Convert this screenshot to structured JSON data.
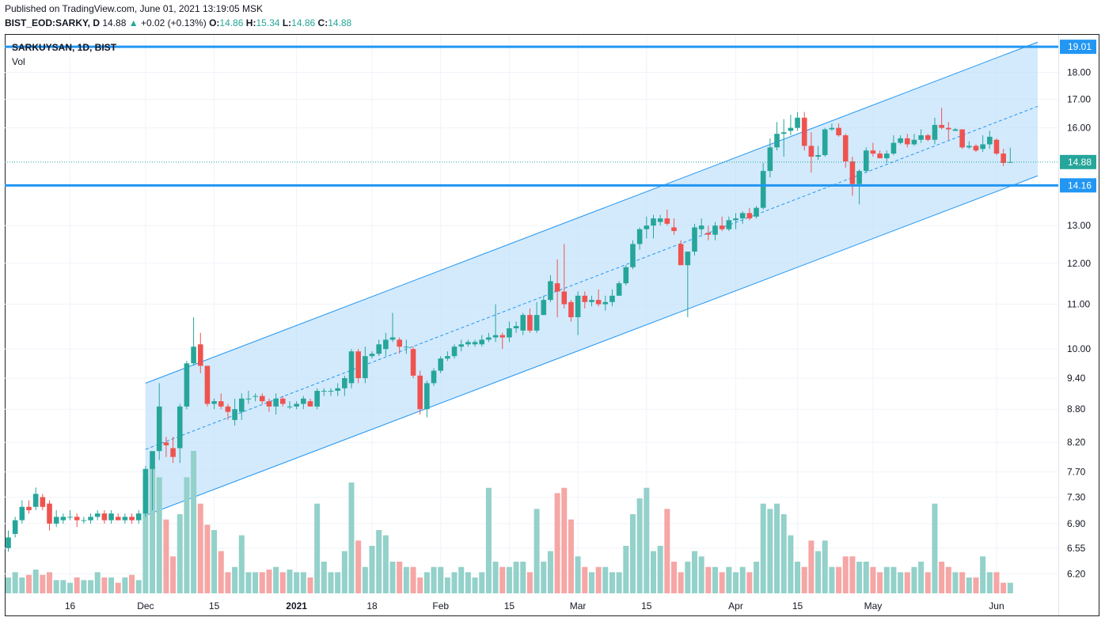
{
  "header": {
    "published": "Published on TradingView.com, June 01, 2021 13:19:05 MSK",
    "symbol": "BIST_EOD:SARKY, D",
    "price": "14.88",
    "change": "+0.02 (+0.13%)",
    "o_label": "O:",
    "o": "14.86",
    "h_label": "H:",
    "h": "15.34",
    "l_label": "L:",
    "l": "14.86",
    "c_label": "C:",
    "c": "14.88"
  },
  "legend": {
    "series": "SARKUYSAN, 1D, BIST",
    "volume": "Vol"
  },
  "colors": {
    "up": "#26a69a",
    "down": "#ef5350",
    "vol_up": "#93d1ca",
    "vol_down": "#f5a6a5",
    "channel": "#2196f3",
    "channel_fill": "#bbdefb",
    "hline": "#2196f3"
  },
  "chart_data": {
    "type": "candlestick",
    "y_scale": "log",
    "y_ticks": [
      "19.01",
      "18.00",
      "17.00",
      "16.00",
      "14.88",
      "14.16",
      "13.00",
      "12.00",
      "11.00",
      "10.00",
      "9.40",
      "8.80",
      "8.20",
      "7.70",
      "7.30",
      "6.90",
      "6.55",
      "6.20"
    ],
    "y_tick_values": [
      19.01,
      18,
      17,
      16,
      14.88,
      14.16,
      13,
      12,
      11,
      10,
      9.4,
      8.8,
      8.2,
      7.7,
      7.3,
      6.9,
      6.55,
      6.2
    ],
    "ylim": [
      5.95,
      19.5
    ],
    "x_ticks": [
      {
        "label": "16",
        "i": 9
      },
      {
        "label": "Dec",
        "i": 20
      },
      {
        "label": "15",
        "i": 30
      },
      {
        "label": "2021",
        "i": 42
      },
      {
        "label": "18",
        "i": 53
      },
      {
        "label": "Feb",
        "i": 63
      },
      {
        "label": "15",
        "i": 73
      },
      {
        "label": "Mar",
        "i": 83
      },
      {
        "label": "15",
        "i": 93
      },
      {
        "label": "Apr",
        "i": 106
      },
      {
        "label": "15",
        "i": 115
      },
      {
        "label": "May",
        "i": 126
      },
      {
        "label": "Jun",
        "i": 144
      }
    ],
    "price_labels": [
      {
        "text": "19.01",
        "value": 19.01,
        "kind": "hline"
      },
      {
        "text": "14.88",
        "value": 14.88,
        "kind": "last"
      },
      {
        "text": "14.16",
        "value": 14.16,
        "kind": "hline"
      }
    ],
    "horizontal_lines": [
      19.01,
      14.16
    ],
    "channel": {
      "start_i": 20,
      "end_i": 150,
      "lower_start": 7.02,
      "lower_end": 14.45,
      "upper_start": 9.3,
      "upper_end": 19.2,
      "mid_start": 8.08,
      "mid_end": 16.75
    },
    "candles": [
      [
        6.55,
        6.8,
        6.5,
        6.7,
        30
      ],
      [
        6.75,
        7.0,
        6.7,
        6.95,
        40
      ],
      [
        6.95,
        7.25,
        6.9,
        7.15,
        30
      ],
      [
        7.15,
        7.25,
        7.05,
        7.1,
        35
      ],
      [
        7.15,
        7.45,
        7.1,
        7.35,
        45
      ],
      [
        7.3,
        7.35,
        7.1,
        7.15,
        35
      ],
      [
        7.2,
        7.25,
        6.8,
        6.9,
        40
      ],
      [
        6.9,
        7.1,
        6.85,
        7.0,
        25
      ],
      [
        6.95,
        7.05,
        6.9,
        7.0,
        25
      ],
      [
        7.0,
        7.1,
        6.95,
        7.0,
        20
      ],
      [
        7.0,
        7.05,
        6.85,
        6.95,
        30
      ],
      [
        6.95,
        7.0,
        6.9,
        6.95,
        25
      ],
      [
        6.95,
        7.05,
        6.9,
        7.0,
        25
      ],
      [
        7.0,
        7.1,
        6.95,
        7.05,
        40
      ],
      [
        7.05,
        7.1,
        6.9,
        6.95,
        30
      ],
      [
        6.95,
        7.1,
        6.9,
        7.05,
        30
      ],
      [
        7.0,
        7.05,
        6.95,
        6.95,
        20
      ],
      [
        6.95,
        7.05,
        6.9,
        7.0,
        30
      ],
      [
        7.0,
        7.05,
        6.9,
        6.95,
        35
      ],
      [
        6.95,
        7.1,
        6.9,
        7.05,
        25
      ],
      [
        7.05,
        7.8,
        7.0,
        7.75,
        220
      ],
      [
        7.75,
        8.0,
        7.1,
        8.05,
        240
      ],
      [
        8.05,
        9.3,
        7.9,
        8.85,
        220
      ],
      [
        8.2,
        8.3,
        7.95,
        8.15,
        140
      ],
      [
        8.1,
        8.3,
        7.85,
        7.95,
        70
      ],
      [
        8.1,
        8.9,
        7.85,
        8.85,
        150
      ],
      [
        8.85,
        9.75,
        8.8,
        9.7,
        220
      ],
      [
        9.7,
        10.7,
        9.65,
        10.05,
        270
      ],
      [
        10.1,
        10.35,
        9.5,
        9.65,
        170
      ],
      [
        9.65,
        9.65,
        8.85,
        8.9,
        130
      ],
      [
        8.9,
        9.0,
        8.8,
        8.95,
        120
      ],
      [
        8.95,
        9.1,
        8.8,
        8.85,
        80
      ],
      [
        8.85,
        8.9,
        8.6,
        8.75,
        40
      ],
      [
        8.6,
        9.0,
        8.5,
        8.8,
        50
      ],
      [
        8.75,
        9.1,
        8.6,
        9.0,
        110
      ],
      [
        9.0,
        9.15,
        8.9,
        9.0,
        40
      ],
      [
        9.05,
        9.1,
        8.95,
        9.05,
        40
      ],
      [
        9.05,
        9.1,
        8.9,
        8.95,
        40
      ],
      [
        8.95,
        9.0,
        8.75,
        8.85,
        45
      ],
      [
        8.85,
        9.1,
        8.7,
        9.0,
        50
      ],
      [
        9.0,
        9.05,
        8.85,
        8.9,
        40
      ],
      [
        8.85,
        8.95,
        8.8,
        8.85,
        45
      ],
      [
        8.85,
        8.95,
        8.8,
        8.9,
        40
      ],
      [
        8.9,
        9.05,
        8.8,
        9.0,
        40
      ],
      [
        8.95,
        9.0,
        8.85,
        8.85,
        30
      ],
      [
        8.85,
        9.2,
        8.8,
        9.15,
        170
      ],
      [
        9.15,
        9.2,
        9.05,
        9.15,
        60
      ],
      [
        9.15,
        9.2,
        9.05,
        9.15,
        40
      ],
      [
        9.15,
        9.3,
        9.05,
        9.2,
        40
      ],
      [
        9.2,
        9.45,
        9.05,
        9.4,
        80
      ],
      [
        9.3,
        10.0,
        9.2,
        9.95,
        210
      ],
      [
        9.95,
        10.0,
        9.3,
        9.4,
        100
      ],
      [
        9.4,
        10.05,
        9.3,
        9.85,
        50
      ],
      [
        9.85,
        9.95,
        9.8,
        9.9,
        90
      ],
      [
        9.9,
        10.2,
        9.85,
        10.1,
        120
      ],
      [
        10.0,
        10.35,
        9.85,
        10.2,
        110
      ],
      [
        10.2,
        10.8,
        10.15,
        10.25,
        60
      ],
      [
        10.2,
        10.25,
        9.9,
        10.05,
        60
      ],
      [
        10.05,
        10.2,
        9.9,
        10.05,
        50
      ],
      [
        10.0,
        10.05,
        9.4,
        9.45,
        50
      ],
      [
        9.45,
        9.55,
        8.7,
        8.8,
        30
      ],
      [
        8.8,
        9.35,
        8.65,
        9.3,
        40
      ],
      [
        9.3,
        9.6,
        9.25,
        9.55,
        50
      ],
      [
        9.55,
        9.85,
        9.5,
        9.8,
        50
      ],
      [
        9.8,
        9.95,
        9.75,
        9.85,
        30
      ],
      [
        9.85,
        10.1,
        9.8,
        10.05,
        40
      ],
      [
        10.05,
        10.2,
        9.95,
        10.1,
        50
      ],
      [
        10.1,
        10.2,
        10.05,
        10.15,
        40
      ],
      [
        10.1,
        10.2,
        10.05,
        10.15,
        30
      ],
      [
        10.1,
        10.3,
        10.05,
        10.2,
        40
      ],
      [
        10.2,
        10.35,
        10.15,
        10.25,
        200
      ],
      [
        10.25,
        11.0,
        10.15,
        10.3,
        60
      ],
      [
        10.3,
        10.35,
        10.0,
        10.25,
        50
      ],
      [
        10.25,
        10.6,
        10.15,
        10.45,
        50
      ],
      [
        10.45,
        10.6,
        10.35,
        10.5,
        60
      ],
      [
        10.4,
        10.8,
        10.3,
        10.75,
        60
      ],
      [
        10.75,
        10.9,
        10.35,
        10.4,
        40
      ],
      [
        10.4,
        11.05,
        10.35,
        10.75,
        160
      ],
      [
        10.75,
        11.2,
        10.75,
        11.1,
        60
      ],
      [
        11.1,
        11.7,
        11.05,
        11.55,
        80
      ],
      [
        11.5,
        12.1,
        10.7,
        11.3,
        190
      ],
      [
        11.3,
        12.5,
        10.9,
        11.0,
        200
      ],
      [
        11.05,
        11.1,
        10.6,
        10.7,
        140
      ],
      [
        10.7,
        11.3,
        10.3,
        11.2,
        70
      ],
      [
        11.2,
        11.3,
        10.9,
        11.05,
        50
      ],
      [
        11.05,
        11.2,
        10.95,
        11.1,
        40
      ],
      [
        11.1,
        11.35,
        10.95,
        11.0,
        50
      ],
      [
        11.0,
        11.2,
        10.85,
        11.05,
        50
      ],
      [
        11.05,
        11.35,
        10.95,
        11.2,
        40
      ],
      [
        11.2,
        11.55,
        11.2,
        11.5,
        40
      ],
      [
        11.5,
        11.95,
        11.45,
        11.9,
        90
      ],
      [
        11.9,
        12.6,
        11.85,
        12.5,
        150
      ],
      [
        12.5,
        12.95,
        12.35,
        12.9,
        180
      ],
      [
        12.9,
        13.25,
        12.65,
        13.0,
        200
      ],
      [
        13.0,
        13.3,
        12.65,
        13.2,
        80
      ],
      [
        13.1,
        13.3,
        13.0,
        13.2,
        90
      ],
      [
        13.2,
        13.45,
        13.0,
        13.05,
        160
      ],
      [
        12.95,
        13.2,
        12.75,
        12.85,
        60
      ],
      [
        12.5,
        12.6,
        11.95,
        11.95,
        40
      ],
      [
        11.95,
        12.3,
        10.7,
        12.3,
        60
      ],
      [
        12.3,
        13.05,
        12.2,
        12.95,
        80
      ],
      [
        12.9,
        13.2,
        12.75,
        13.0,
        70
      ],
      [
        12.8,
        13.0,
        12.6,
        12.75,
        50
      ],
      [
        12.75,
        13.1,
        12.6,
        13.0,
        50
      ],
      [
        13.0,
        13.25,
        12.85,
        12.9,
        40
      ],
      [
        12.9,
        13.25,
        12.85,
        13.15,
        50
      ],
      [
        13.15,
        13.35,
        12.9,
        13.2,
        40
      ],
      [
        13.2,
        13.4,
        13.05,
        13.35,
        50
      ],
      [
        13.35,
        13.5,
        13.15,
        13.2,
        40
      ],
      [
        13.25,
        13.55,
        13.2,
        13.5,
        60
      ],
      [
        13.5,
        14.85,
        13.45,
        14.6,
        170
      ],
      [
        14.6,
        15.65,
        14.4,
        15.35,
        160
      ],
      [
        15.35,
        16.2,
        15.25,
        15.8,
        170
      ],
      [
        15.8,
        16.3,
        15.05,
        15.85,
        150
      ],
      [
        15.9,
        16.45,
        15.75,
        16.0,
        110
      ],
      [
        16.0,
        16.55,
        15.9,
        16.35,
        60
      ],
      [
        16.35,
        16.55,
        15.25,
        15.4,
        50
      ],
      [
        15.4,
        15.85,
        14.55,
        15.05,
        100
      ],
      [
        15.05,
        15.4,
        14.95,
        15.1,
        80
      ],
      [
        15.1,
        16.0,
        15.05,
        15.95,
        100
      ],
      [
        15.95,
        16.15,
        15.9,
        16.0,
        50
      ],
      [
        16.0,
        16.15,
        15.7,
        15.75,
        50
      ],
      [
        15.75,
        15.8,
        14.7,
        14.9,
        70
      ],
      [
        14.9,
        15.05,
        13.85,
        14.2,
        70
      ],
      [
        14.2,
        14.65,
        13.6,
        14.6,
        60
      ],
      [
        14.6,
        15.35,
        14.55,
        15.25,
        60
      ],
      [
        15.25,
        15.5,
        15.05,
        15.15,
        50
      ],
      [
        15.15,
        15.25,
        15.0,
        15.0,
        40
      ],
      [
        15.0,
        15.25,
        14.85,
        15.15,
        50
      ],
      [
        15.15,
        15.75,
        15.1,
        15.5,
        50
      ],
      [
        15.5,
        15.75,
        15.45,
        15.65,
        40
      ],
      [
        15.65,
        15.8,
        15.35,
        15.45,
        40
      ],
      [
        15.45,
        15.8,
        15.4,
        15.6,
        50
      ],
      [
        15.6,
        15.95,
        15.5,
        15.75,
        60
      ],
      [
        15.75,
        15.8,
        15.55,
        15.6,
        40
      ],
      [
        15.6,
        16.35,
        15.45,
        16.1,
        170
      ],
      [
        16.1,
        16.7,
        15.95,
        16.0,
        60
      ],
      [
        16.0,
        16.2,
        15.6,
        15.95,
        50
      ],
      [
        15.9,
        16.0,
        15.9,
        15.95,
        40
      ],
      [
        15.95,
        15.95,
        15.3,
        15.35,
        40
      ],
      [
        15.35,
        15.55,
        15.3,
        15.4,
        30
      ],
      [
        15.4,
        15.45,
        15.2,
        15.25,
        30
      ],
      [
        15.3,
        15.75,
        15.2,
        15.45,
        70
      ],
      [
        15.45,
        15.9,
        15.3,
        15.7,
        40
      ],
      [
        15.6,
        15.65,
        15.1,
        15.15,
        40
      ],
      [
        15.15,
        15.3,
        14.75,
        14.85,
        20
      ],
      [
        14.86,
        15.34,
        14.86,
        14.88,
        20
      ]
    ]
  }
}
